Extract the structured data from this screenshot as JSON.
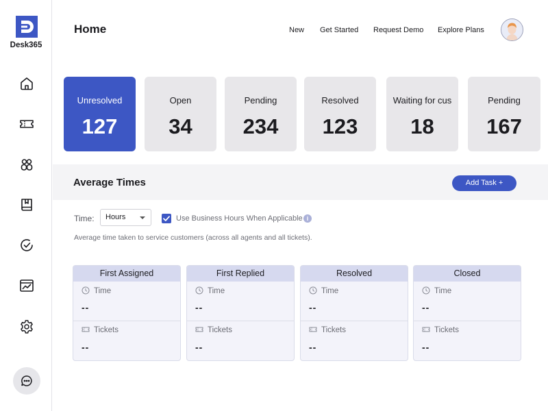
{
  "app": {
    "brand": "Desk365"
  },
  "header": {
    "title": "Home",
    "links": [
      "New",
      "Get Started",
      "Request Demo",
      "Explore Plans"
    ]
  },
  "sidebar": {
    "icons": [
      "home-icon",
      "ticket-icon",
      "contacts-icon",
      "knowledge-book-icon",
      "tasks-check-icon",
      "reports-chart-icon",
      "settings-gear-icon"
    ],
    "chat_icon": "chat-bubble-icon"
  },
  "cards": [
    {
      "label": "Unresolved",
      "value": "127",
      "active": true
    },
    {
      "label": "Open",
      "value": "34",
      "active": false
    },
    {
      "label": "Pending",
      "value": "234",
      "active": false
    },
    {
      "label": "Resolved",
      "value": "123",
      "active": false
    },
    {
      "label": "Waiting for cus",
      "value": "18",
      "active": false
    },
    {
      "label": "Pending",
      "value": "167",
      "active": false
    }
  ],
  "average_times": {
    "title": "Average Times",
    "add_task_label": "Add Task +",
    "time_label": "Time:",
    "time_unit": "Hours",
    "business_hours_label": "Use Business Hours When Applicable",
    "business_hours_checked": true,
    "description": "Average time taken to service customers (across all agents and all tickets).",
    "metrics": [
      {
        "title": "First Assigned",
        "time_label": "Time",
        "time_value": "--",
        "tickets_label": "Tickets",
        "tickets_value": "--"
      },
      {
        "title": "First Replied",
        "time_label": "Time",
        "time_value": "--",
        "tickets_label": "Tickets",
        "tickets_value": "--"
      },
      {
        "title": "Resolved",
        "time_label": "Time",
        "time_value": "--",
        "tickets_label": "Tickets",
        "tickets_value": "--"
      },
      {
        "title": "Closed",
        "time_label": "Time",
        "time_value": "--",
        "tickets_label": "Tickets",
        "tickets_value": "--"
      }
    ]
  },
  "colors": {
    "accent": "#3d57c4",
    "card_bg": "#e8e7ea",
    "metric_header": "#d6d9ef"
  }
}
